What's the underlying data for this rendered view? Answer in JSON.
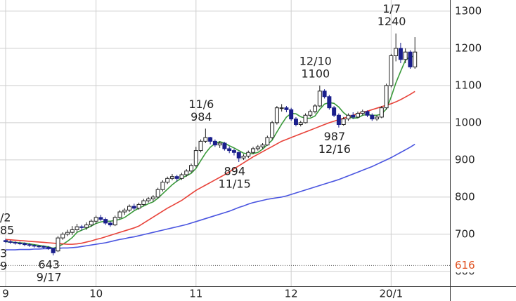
{
  "chart_data": {
    "type": "candlestick",
    "categories": [
      "9",
      null,
      null,
      null,
      null,
      null,
      null,
      null,
      null,
      null,
      null,
      null,
      null,
      null,
      null,
      null,
      null,
      null,
      null,
      "10",
      null,
      null,
      null,
      null,
      null,
      null,
      null,
      null,
      null,
      null,
      null,
      null,
      null,
      null,
      null,
      null,
      null,
      null,
      null,
      null,
      "11",
      null,
      null,
      null,
      null,
      null,
      null,
      null,
      null,
      null,
      null,
      null,
      null,
      null,
      null,
      null,
      null,
      null,
      null,
      null,
      "12",
      null,
      null,
      null,
      null,
      null,
      null,
      null,
      null,
      null,
      null,
      null,
      null,
      null,
      null,
      null,
      null,
      null,
      null,
      null,
      null,
      "20/1",
      null,
      null,
      null,
      null,
      null
    ],
    "ohlc": [
      [
        683,
        688,
        676,
        680
      ],
      [
        680,
        684,
        674,
        678
      ],
      [
        678,
        681,
        672,
        676
      ],
      [
        676,
        680,
        671,
        675
      ],
      [
        675,
        678,
        668,
        672
      ],
      [
        672,
        676,
        666,
        670
      ],
      [
        670,
        673,
        664,
        668
      ],
      [
        668,
        671,
        663,
        667
      ],
      [
        667,
        670,
        660,
        665
      ],
      [
        665,
        668,
        658,
        662
      ],
      [
        662,
        664,
        643,
        650
      ],
      [
        655,
        695,
        652,
        690
      ],
      [
        690,
        705,
        685,
        700
      ],
      [
        700,
        712,
        695,
        705
      ],
      [
        705,
        722,
        698,
        712
      ],
      [
        712,
        728,
        706,
        720
      ],
      [
        720,
        725,
        710,
        718
      ],
      [
        718,
        732,
        712,
        725
      ],
      [
        725,
        740,
        720,
        735
      ],
      [
        735,
        750,
        728,
        745
      ],
      [
        745,
        752,
        736,
        740
      ],
      [
        740,
        745,
        725,
        730
      ],
      [
        730,
        735,
        720,
        725
      ],
      [
        725,
        750,
        722,
        745
      ],
      [
        745,
        765,
        740,
        760
      ],
      [
        760,
        770,
        752,
        765
      ],
      [
        765,
        780,
        760,
        775
      ],
      [
        775,
        782,
        765,
        770
      ],
      [
        770,
        785,
        766,
        780
      ],
      [
        780,
        795,
        775,
        790
      ],
      [
        790,
        800,
        785,
        795
      ],
      [
        795,
        805,
        788,
        800
      ],
      [
        800,
        825,
        796,
        820
      ],
      [
        820,
        845,
        815,
        840
      ],
      [
        840,
        855,
        835,
        850
      ],
      [
        850,
        862,
        845,
        855
      ],
      [
        855,
        860,
        842,
        850
      ],
      [
        850,
        865,
        846,
        860
      ],
      [
        860,
        875,
        855,
        870
      ],
      [
        870,
        890,
        866,
        885
      ],
      [
        885,
        935,
        880,
        925
      ],
      [
        925,
        955,
        920,
        950
      ],
      [
        950,
        984,
        945,
        960
      ],
      [
        960,
        962,
        942,
        950
      ],
      [
        950,
        955,
        935,
        940
      ],
      [
        940,
        950,
        932,
        945
      ],
      [
        945,
        948,
        925,
        930
      ],
      [
        930,
        936,
        918,
        925
      ],
      [
        925,
        930,
        912,
        920
      ],
      [
        920,
        922,
        894,
        905
      ],
      [
        905,
        915,
        900,
        910
      ],
      [
        910,
        925,
        905,
        920
      ],
      [
        920,
        935,
        915,
        930
      ],
      [
        930,
        940,
        925,
        935
      ],
      [
        935,
        945,
        930,
        940
      ],
      [
        940,
        965,
        938,
        960
      ],
      [
        960,
        1005,
        955,
        1000
      ],
      [
        1000,
        1045,
        995,
        1040
      ],
      [
        1040,
        1050,
        1030,
        1040
      ],
      [
        1040,
        1045,
        1028,
        1035
      ],
      [
        1035,
        1040,
        1005,
        1010
      ],
      [
        1010,
        1015,
        990,
        995
      ],
      [
        995,
        1005,
        990,
        1000
      ],
      [
        1000,
        1025,
        998,
        1020
      ],
      [
        1020,
        1035,
        1015,
        1030
      ],
      [
        1030,
        1050,
        1025,
        1045
      ],
      [
        1045,
        1100,
        1042,
        1085
      ],
      [
        1085,
        1090,
        1065,
        1070
      ],
      [
        1070,
        1075,
        1035,
        1040
      ],
      [
        1040,
        1045,
        1015,
        1020
      ],
      [
        1020,
        1025,
        987,
        995
      ],
      [
        995,
        1015,
        992,
        1010
      ],
      [
        1010,
        1025,
        1005,
        1020
      ],
      [
        1020,
        1028,
        1010,
        1015
      ],
      [
        1015,
        1030,
        1012,
        1025
      ],
      [
        1025,
        1035,
        1020,
        1030
      ],
      [
        1030,
        1033,
        1015,
        1020
      ],
      [
        1020,
        1025,
        1005,
        1010
      ],
      [
        1010,
        1020,
        1005,
        1015
      ],
      [
        1015,
        1045,
        1012,
        1040
      ],
      [
        1040,
        1105,
        1035,
        1100
      ],
      [
        1100,
        1185,
        1095,
        1180
      ],
      [
        1180,
        1240,
        1165,
        1200
      ],
      [
        1200,
        1215,
        1160,
        1170
      ],
      [
        1170,
        1200,
        1160,
        1190
      ],
      [
        1190,
        1195,
        1145,
        1150
      ],
      [
        1150,
        1230,
        1145,
        1190
      ]
    ],
    "up_color": "#ffffff",
    "down_color": "#1a1f8c",
    "wick_color": "#222222",
    "series": [
      {
        "color": "#3a9a3a",
        "values": [
          680,
          679,
          678,
          677,
          676,
          674,
          672,
          670,
          668,
          666,
          662,
          667,
          673,
          681,
          691,
          705,
          711,
          716,
          722,
          729,
          733,
          735,
          735,
          737,
          740,
          745,
          754,
          763,
          770,
          776,
          782,
          787,
          797,
          809,
          821,
          833,
          843,
          851,
          857,
          864,
          877,
          898,
          918,
          934,
          944,
          949,
          945,
          938,
          932,
          925,
          918,
          916,
          917,
          920,
          929,
          941,
          953,
          975,
          996,
          1015,
          1025,
          1024,
          1016,
          1012,
          1012,
          1018,
          1036,
          1050,
          1054,
          1052,
          1042,
          1027,
          1017,
          1012,
          1013,
          1020,
          1022,
          1020,
          1020,
          1023,
          1037,
          1069,
          1107,
          1138,
          1168,
          1178,
          1178
        ]
      },
      {
        "color": "#e8433a",
        "values": [
          686,
          685,
          684,
          683,
          682,
          681,
          680,
          679,
          678,
          677,
          676,
          675,
          674,
          673,
          673,
          674,
          676,
          679,
          682,
          686,
          689,
          693,
          697,
          701,
          705,
          709,
          713,
          717,
          722,
          730,
          738,
          746,
          754,
          762,
          770,
          777,
          784,
          791,
          800,
          809,
          818,
          825,
          832,
          839,
          846,
          853,
          860,
          868,
          876,
          884,
          892,
          900,
          908,
          915,
          922,
          929,
          936,
          943,
          950,
          955,
          960,
          965,
          970,
          975,
          980,
          985,
          990,
          995,
          1000,
          1004,
          1008,
          1012,
          1016,
          1020,
          1024,
          1028,
          1031,
          1035,
          1039,
          1043,
          1047,
          1051,
          1056,
          1062,
          1069,
          1076,
          1084
        ]
      },
      {
        "color": "#4a55e0",
        "values": [
          658,
          658,
          658,
          659,
          659,
          659,
          660,
          660,
          661,
          661,
          662,
          662,
          663,
          663,
          664,
          665,
          667,
          669,
          671,
          673,
          675,
          677,
          680,
          683,
          686,
          688,
          691,
          693,
          696,
          699,
          702,
          705,
          708,
          711,
          714,
          717,
          720,
          723,
          726,
          730,
          734,
          738,
          742,
          746,
          750,
          754,
          758,
          762,
          767,
          772,
          776,
          781,
          785,
          788,
          791,
          794,
          796,
          798,
          800,
          803,
          807,
          811,
          815,
          819,
          823,
          827,
          831,
          835,
          839,
          843,
          847,
          852,
          857,
          862,
          867,
          872,
          877,
          882,
          888,
          894,
          900,
          906,
          913,
          920,
          927,
          934,
          942
        ]
      }
    ],
    "annotations": [
      {
        "date": "9/17",
        "value": 643
      },
      {
        "date": "11/6",
        "value": 984
      },
      {
        "date": "11/15",
        "value": 894
      },
      {
        "date": "12/10",
        "value": 1100
      },
      {
        "date": "12/16",
        "value": 987
      },
      {
        "date": "1/7",
        "value": 1240
      }
    ],
    "clipped_labels": [
      [
        "/2",
        "85"
      ],
      [
        "3",
        "9"
      ]
    ],
    "reference_line": {
      "value": 616,
      "label": "616",
      "color": "#e0501e"
    },
    "ylim": [
      560,
      1330
    ],
    "yticks": [
      600,
      700,
      800,
      900,
      1000,
      1100,
      1200,
      1300
    ],
    "grid": true,
    "axis_side": "right"
  }
}
